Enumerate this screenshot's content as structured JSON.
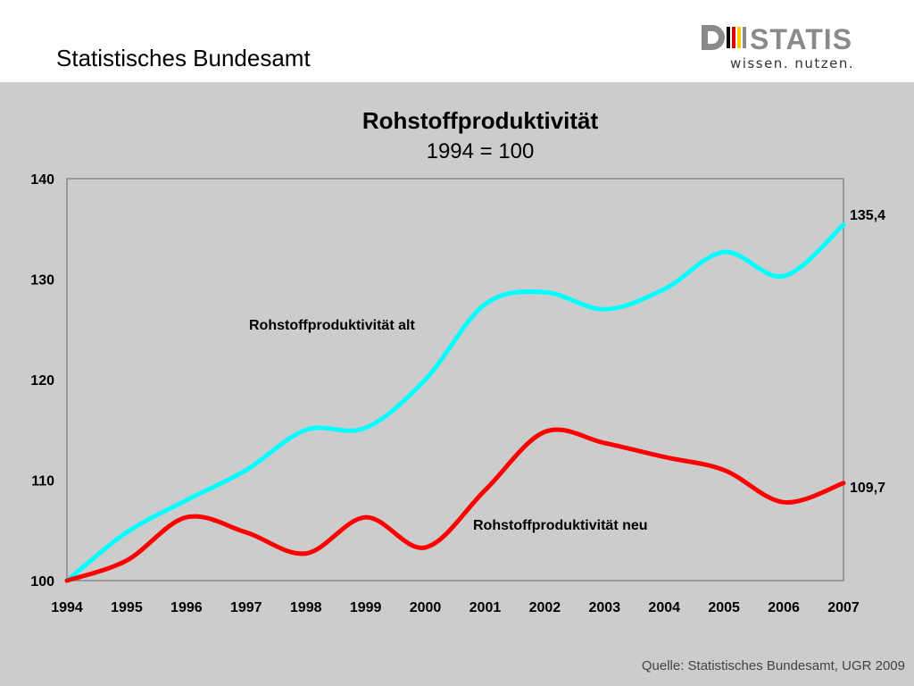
{
  "header": {
    "title": "Statistisches Bundesamt",
    "logo_text": "DESTATIS",
    "logo_tagline": "wissen. nutzen."
  },
  "source": "Quelle: Statistisches Bundesamt, UGR 2009",
  "colors": {
    "background_plot": "#cccccc",
    "series_alt": "#00ffff",
    "series_neu": "#ff0000",
    "logo_gray": "#8a8a8a",
    "logo_red": "#dd0000",
    "logo_yellow": "#ffcc00"
  },
  "chart_data": {
    "type": "line",
    "title": "Rohstoffproduktivität",
    "subtitle": "1994 = 100",
    "x": [
      "1994",
      "1995",
      "1996",
      "1997",
      "1998",
      "1999",
      "2000",
      "2001",
      "2002",
      "2003",
      "2004",
      "2005",
      "2006",
      "2007"
    ],
    "ylim": [
      100,
      140
    ],
    "yticks": [
      "100",
      "110",
      "120",
      "130",
      "140"
    ],
    "grid": false,
    "series": [
      {
        "name": "Rohstoffproduktivität alt",
        "color": "#00ffff",
        "values": [
          100,
          104.8,
          108,
          111,
          115,
          115.2,
          120,
          127.5,
          128.7,
          127,
          129,
          132.7,
          130.3,
          135.4
        ],
        "end_label": "135,4"
      },
      {
        "name": "Rohstoffproduktivität neu",
        "color": "#ff0000",
        "values": [
          100,
          102,
          106.3,
          104.8,
          102.7,
          106.3,
          103.3,
          109,
          114.8,
          113.7,
          112.3,
          111,
          107.8,
          109.7
        ],
        "end_label": "109,7"
      }
    ]
  }
}
